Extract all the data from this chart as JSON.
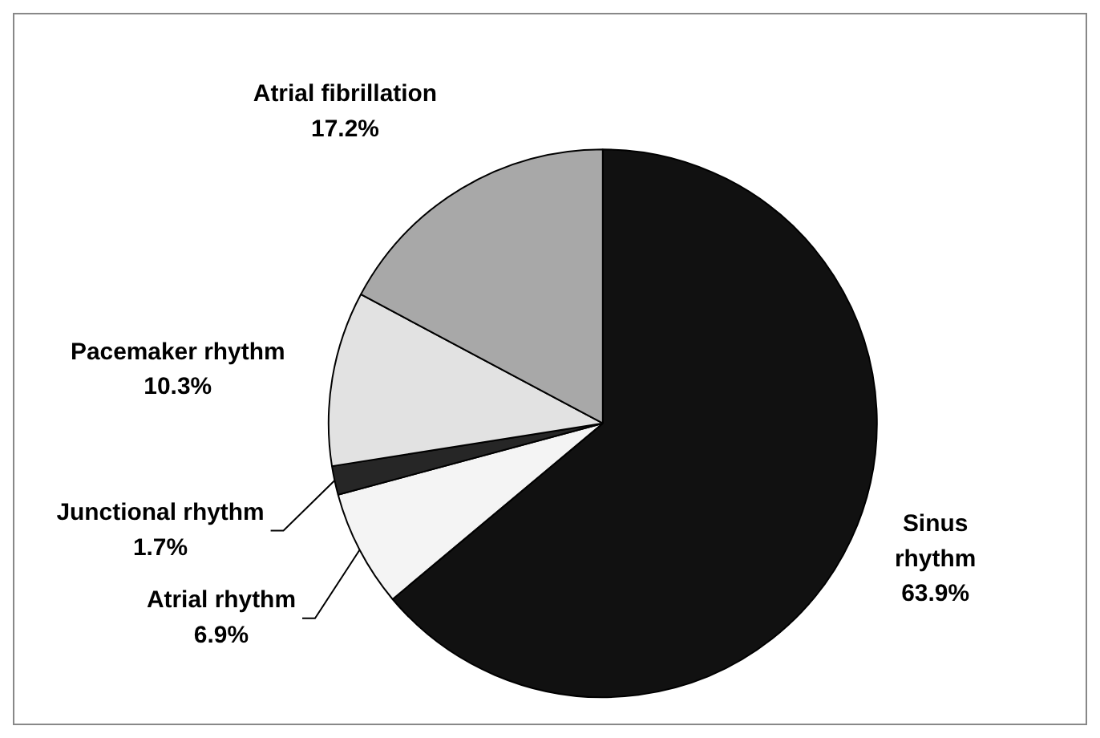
{
  "chart_data": {
    "type": "pie",
    "categories": [
      "Sinus rhythm",
      "Atrial rhythm",
      "Junctional rhythm",
      "Pacemaker rhythm",
      "Atrial fibrillation"
    ],
    "values": [
      63.9,
      6.9,
      1.7,
      10.3,
      17.2
    ],
    "value_labels": [
      "63.9%",
      "6.9%",
      "1.7%",
      "10.3%",
      "17.2%"
    ],
    "colors": [
      "#111111",
      "#f4f4f4",
      "#262626",
      "#e2e2e2",
      "#a8a8a8"
    ],
    "legend": false
  }
}
